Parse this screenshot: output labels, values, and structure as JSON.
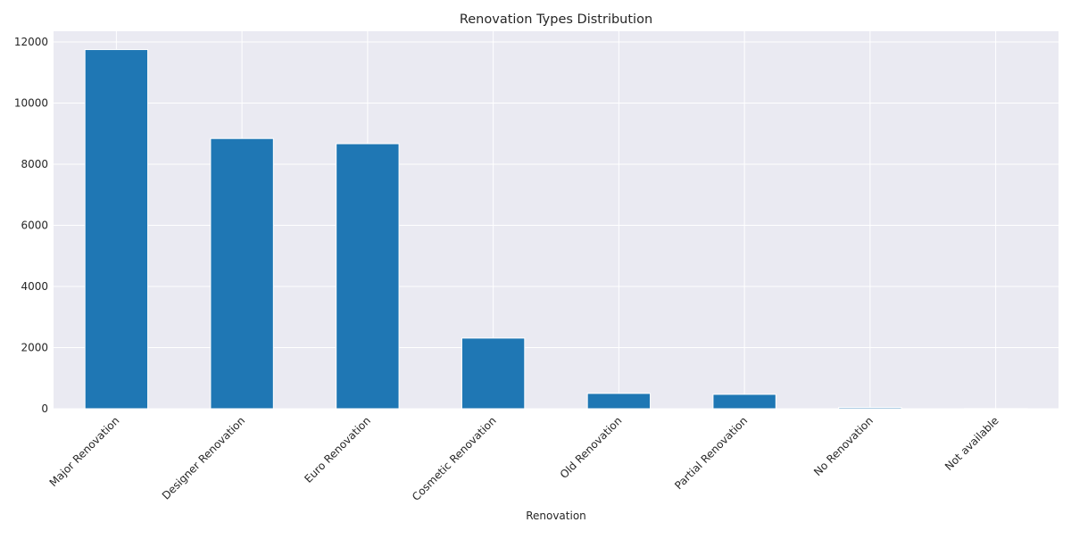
{
  "chart_data": {
    "type": "bar",
    "title": "Renovation Types Distribution",
    "xlabel": "Renovation",
    "ylabel": "",
    "categories": [
      "Major Renovation",
      "Designer Renovation",
      "Euro Renovation",
      "Cosmetic Renovation",
      "Old Renovation",
      "Partial Renovation",
      "No Renovation",
      "Not available"
    ],
    "values": [
      11750,
      8840,
      8670,
      2310,
      500,
      470,
      40,
      5
    ],
    "ylim": [
      0,
      12350
    ],
    "yticks": [
      0,
      2000,
      4000,
      6000,
      8000,
      10000,
      12000
    ],
    "grid": true,
    "colors": {
      "bar": "#1f77b4",
      "plot_background": "#eaeaf2",
      "grid": "#ffffff"
    }
  }
}
